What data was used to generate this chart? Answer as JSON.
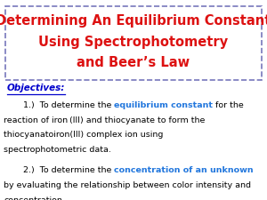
{
  "title_line1": "Determining An Equilibrium Constant",
  "title_line2": "Using Spectrophotometry",
  "title_line3": "and Beer’s Law",
  "title_color": "#dd1111",
  "title_box_edge_color": "#7777bb",
  "background_color": "#ffffff",
  "objectives_label": "Objectives:",
  "objectives_color": "#0000cc",
  "para1_highlight": "equilibrium constant",
  "para1_highlight_color": "#2277dd",
  "para2_highlight": "concentration of an unknown",
  "para2_highlight_color": "#2277dd",
  "body_color": "#000000",
  "title_fontsize": 10.5,
  "body_fontsize": 6.8,
  "obj_fontsize": 7.5
}
